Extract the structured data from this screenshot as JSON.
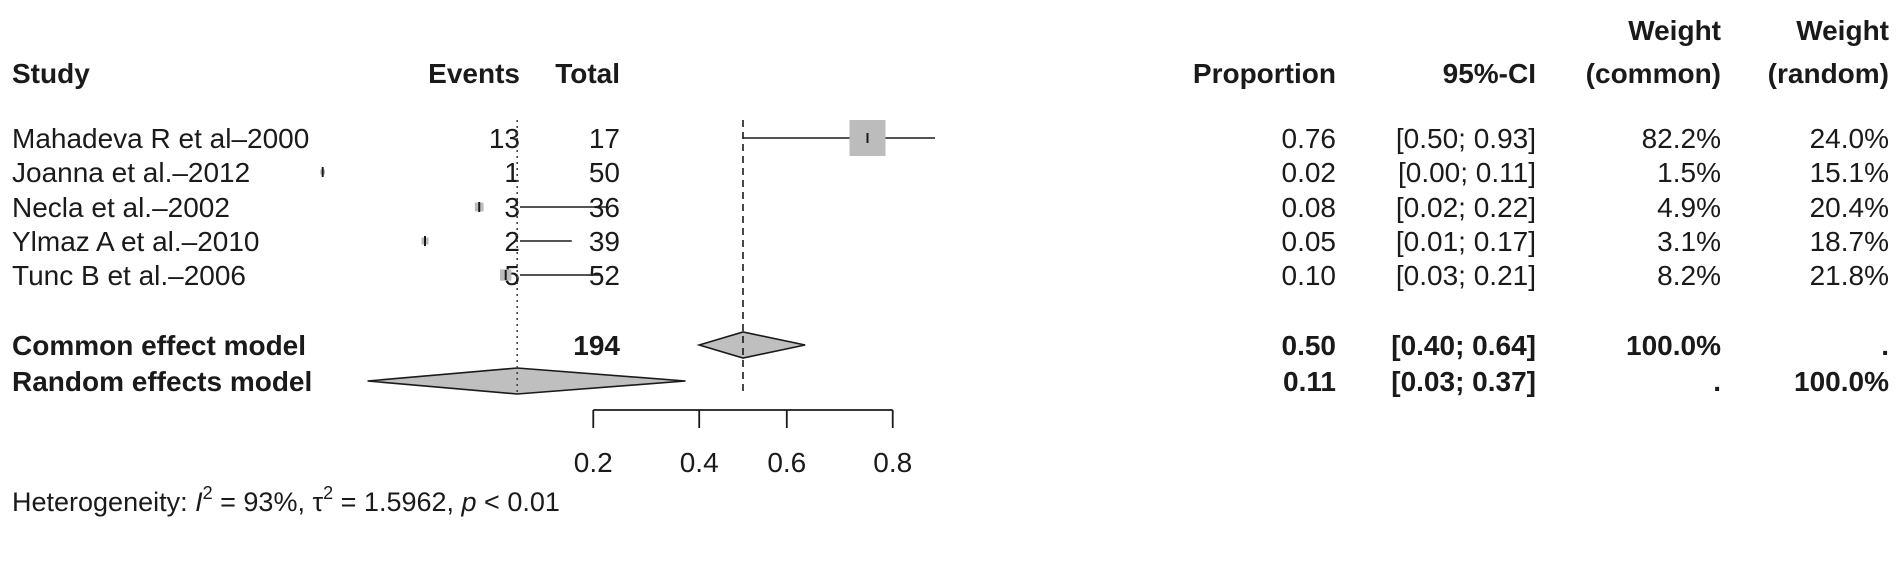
{
  "chart_data": {
    "type": "forest",
    "headers": {
      "study": "Study",
      "events": "Events",
      "total": "Total",
      "proportion": "Proportion",
      "ci": "95%-CI",
      "weight_common": [
        "Weight",
        "(common)"
      ],
      "weight_random": [
        "Weight",
        "(random)"
      ]
    },
    "studies": [
      {
        "name": "Mahadeva R et al–2000",
        "events": "13",
        "total": "17",
        "proportion": 0.76,
        "lower": 0.5,
        "upper": 0.93,
        "prop_text": "0.76",
        "ci_text": "[0.50; 0.93]",
        "w_common": "82.2%",
        "w_random": "24.0%",
        "box_weight": 82.2,
        "right_arrow": true
      },
      {
        "name": "Joanna et  al.–2012",
        "events": "1",
        "total": "50",
        "proportion": 0.02,
        "lower": 0.0,
        "upper": 0.11,
        "prop_text": "0.02",
        "ci_text": "[0.00; 0.11]",
        "w_common": "1.5%",
        "w_random": "15.1%",
        "box_weight": 1.5
      },
      {
        "name": "Necla et al.–2002",
        "events": "3",
        "total": "36",
        "proportion": 0.08,
        "lower": 0.02,
        "upper": 0.22,
        "prop_text": "0.08",
        "ci_text": "[0.02; 0.22]",
        "w_common": "4.9%",
        "w_random": "20.4%",
        "box_weight": 4.9
      },
      {
        "name": "Ylmaz A et al.–2010",
        "events": "2",
        "total": "39",
        "proportion": 0.05,
        "lower": 0.01,
        "upper": 0.17,
        "prop_text": "0.05",
        "ci_text": "[0.01; 0.17]",
        "w_common": "3.1%",
        "w_random": "18.7%",
        "box_weight": 3.1
      },
      {
        "name": "Tunc B et al.–2006",
        "events": "5",
        "total": "52",
        "proportion": 0.1,
        "lower": 0.03,
        "upper": 0.21,
        "prop_text": "0.10",
        "ci_text": "[0.03; 0.21]",
        "w_common": "8.2%",
        "w_random": "21.8%",
        "box_weight": 8.2
      }
    ],
    "models": [
      {
        "name": "Common effect model",
        "total": "194",
        "estimate": 0.5,
        "lower": 0.4,
        "upper": 0.64,
        "prop_text": "0.50",
        "ci_text": "[0.40; 0.64]",
        "w_common": "100.0%",
        "w_random": "."
      },
      {
        "name": "Random effects model",
        "total": "",
        "estimate": 0.11,
        "lower": 0.03,
        "upper": 0.37,
        "prop_text": "0.11",
        "ci_text": "[0.03; 0.37]",
        "w_common": ".",
        "w_random": "100.0%"
      }
    ],
    "heterogeneity": {
      "label": "Heterogeneity: ",
      "i2_symbol": "I",
      "i2_value": " = 93%, ",
      "tau2_symbol": "τ",
      "tau2_value": " = 1.5962, ",
      "p_symbol": "p",
      "p_value": " < 0.01"
    },
    "x_axis": {
      "scale": "logit",
      "ticks": [
        0.2,
        0.4,
        0.6,
        0.8
      ],
      "tick_labels": [
        "0.2",
        "0.4",
        "0.6",
        "0.8"
      ]
    },
    "reference_lines": {
      "dashed": 0.5,
      "dotted": 0.11
    },
    "colors": {
      "box": "#bcbcbc",
      "diamond": "#bfbfbf",
      "line": "#1a1a1a"
    }
  }
}
